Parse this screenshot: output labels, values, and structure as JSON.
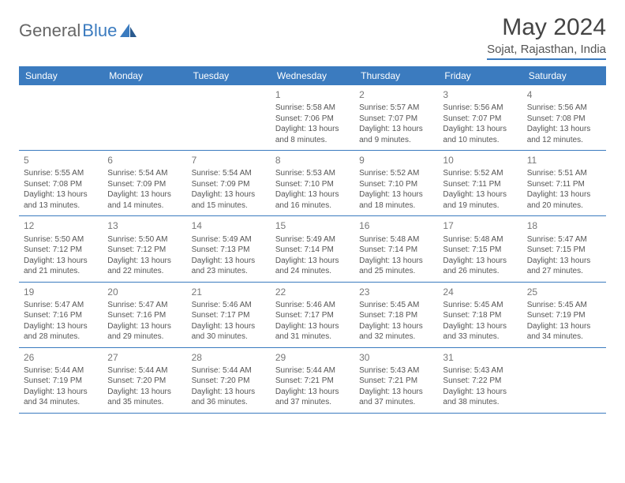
{
  "logo": {
    "general": "General",
    "blue": "Blue"
  },
  "title": "May 2024",
  "location": "Sojat, Rajasthan, India",
  "colors": {
    "header_bg": "#3b7bbf",
    "header_text": "#ffffff",
    "divider": "#3b7bbf",
    "body_text": "#555555",
    "daynum": "#777777",
    "background": "#ffffff"
  },
  "weekdays": [
    "Sunday",
    "Monday",
    "Tuesday",
    "Wednesday",
    "Thursday",
    "Friday",
    "Saturday"
  ],
  "weeks": [
    [
      null,
      null,
      null,
      {
        "n": "1",
        "sr": "5:58 AM",
        "ss": "7:06 PM",
        "dl": "13 hours and 8 minutes."
      },
      {
        "n": "2",
        "sr": "5:57 AM",
        "ss": "7:07 PM",
        "dl": "13 hours and 9 minutes."
      },
      {
        "n": "3",
        "sr": "5:56 AM",
        "ss": "7:07 PM",
        "dl": "13 hours and 10 minutes."
      },
      {
        "n": "4",
        "sr": "5:56 AM",
        "ss": "7:08 PM",
        "dl": "13 hours and 12 minutes."
      }
    ],
    [
      {
        "n": "5",
        "sr": "5:55 AM",
        "ss": "7:08 PM",
        "dl": "13 hours and 13 minutes."
      },
      {
        "n": "6",
        "sr": "5:54 AM",
        "ss": "7:09 PM",
        "dl": "13 hours and 14 minutes."
      },
      {
        "n": "7",
        "sr": "5:54 AM",
        "ss": "7:09 PM",
        "dl": "13 hours and 15 minutes."
      },
      {
        "n": "8",
        "sr": "5:53 AM",
        "ss": "7:10 PM",
        "dl": "13 hours and 16 minutes."
      },
      {
        "n": "9",
        "sr": "5:52 AM",
        "ss": "7:10 PM",
        "dl": "13 hours and 18 minutes."
      },
      {
        "n": "10",
        "sr": "5:52 AM",
        "ss": "7:11 PM",
        "dl": "13 hours and 19 minutes."
      },
      {
        "n": "11",
        "sr": "5:51 AM",
        "ss": "7:11 PM",
        "dl": "13 hours and 20 minutes."
      }
    ],
    [
      {
        "n": "12",
        "sr": "5:50 AM",
        "ss": "7:12 PM",
        "dl": "13 hours and 21 minutes."
      },
      {
        "n": "13",
        "sr": "5:50 AM",
        "ss": "7:12 PM",
        "dl": "13 hours and 22 minutes."
      },
      {
        "n": "14",
        "sr": "5:49 AM",
        "ss": "7:13 PM",
        "dl": "13 hours and 23 minutes."
      },
      {
        "n": "15",
        "sr": "5:49 AM",
        "ss": "7:14 PM",
        "dl": "13 hours and 24 minutes."
      },
      {
        "n": "16",
        "sr": "5:48 AM",
        "ss": "7:14 PM",
        "dl": "13 hours and 25 minutes."
      },
      {
        "n": "17",
        "sr": "5:48 AM",
        "ss": "7:15 PM",
        "dl": "13 hours and 26 minutes."
      },
      {
        "n": "18",
        "sr": "5:47 AM",
        "ss": "7:15 PM",
        "dl": "13 hours and 27 minutes."
      }
    ],
    [
      {
        "n": "19",
        "sr": "5:47 AM",
        "ss": "7:16 PM",
        "dl": "13 hours and 28 minutes."
      },
      {
        "n": "20",
        "sr": "5:47 AM",
        "ss": "7:16 PM",
        "dl": "13 hours and 29 minutes."
      },
      {
        "n": "21",
        "sr": "5:46 AM",
        "ss": "7:17 PM",
        "dl": "13 hours and 30 minutes."
      },
      {
        "n": "22",
        "sr": "5:46 AM",
        "ss": "7:17 PM",
        "dl": "13 hours and 31 minutes."
      },
      {
        "n": "23",
        "sr": "5:45 AM",
        "ss": "7:18 PM",
        "dl": "13 hours and 32 minutes."
      },
      {
        "n": "24",
        "sr": "5:45 AM",
        "ss": "7:18 PM",
        "dl": "13 hours and 33 minutes."
      },
      {
        "n": "25",
        "sr": "5:45 AM",
        "ss": "7:19 PM",
        "dl": "13 hours and 34 minutes."
      }
    ],
    [
      {
        "n": "26",
        "sr": "5:44 AM",
        "ss": "7:19 PM",
        "dl": "13 hours and 34 minutes."
      },
      {
        "n": "27",
        "sr": "5:44 AM",
        "ss": "7:20 PM",
        "dl": "13 hours and 35 minutes."
      },
      {
        "n": "28",
        "sr": "5:44 AM",
        "ss": "7:20 PM",
        "dl": "13 hours and 36 minutes."
      },
      {
        "n": "29",
        "sr": "5:44 AM",
        "ss": "7:21 PM",
        "dl": "13 hours and 37 minutes."
      },
      {
        "n": "30",
        "sr": "5:43 AM",
        "ss": "7:21 PM",
        "dl": "13 hours and 37 minutes."
      },
      {
        "n": "31",
        "sr": "5:43 AM",
        "ss": "7:22 PM",
        "dl": "13 hours and 38 minutes."
      },
      null
    ]
  ],
  "labels": {
    "sunrise": "Sunrise:",
    "sunset": "Sunset:",
    "daylight": "Daylight:"
  }
}
